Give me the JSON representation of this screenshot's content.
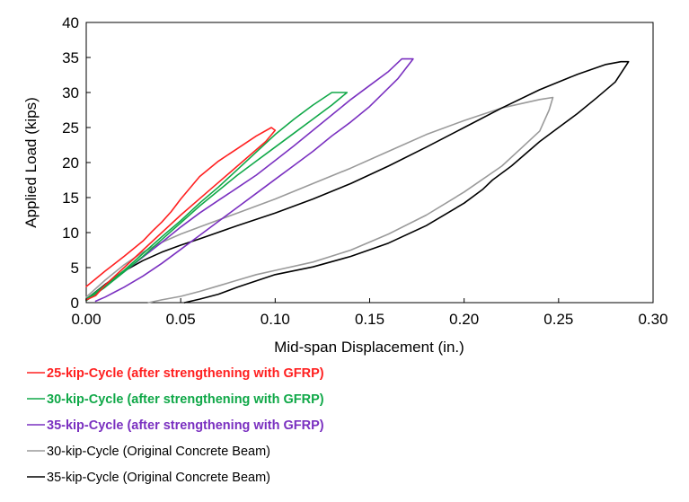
{
  "chart_data": {
    "type": "line",
    "title": "",
    "xlabel": "Mid-span Displacement (in.)",
    "ylabel": "Applied Load (kips)",
    "xlim": [
      0,
      0.3
    ],
    "ylim": [
      0,
      40
    ],
    "x_ticks": [
      "0.00",
      "0.05",
      "0.10",
      "0.15",
      "0.20",
      "0.25",
      "0.30"
    ],
    "y_ticks": [
      "0",
      "5",
      "10",
      "15",
      "20",
      "25",
      "30",
      "35",
      "40"
    ],
    "grid": false,
    "legend_position": "bottom-left",
    "series": [
      {
        "name": "25-kip-Cycle (after strengthening with GFRP)",
        "color": "#ff2020",
        "bold": true,
        "loading": [
          [
            0.0,
            2.3
          ],
          [
            0.01,
            4.5
          ],
          [
            0.02,
            6.6
          ],
          [
            0.03,
            8.8
          ],
          [
            0.035,
            10.2
          ],
          [
            0.04,
            11.5
          ],
          [
            0.045,
            13.0
          ],
          [
            0.05,
            14.8
          ],
          [
            0.055,
            16.4
          ],
          [
            0.06,
            18.0
          ],
          [
            0.07,
            20.2
          ],
          [
            0.08,
            22.0
          ],
          [
            0.09,
            23.8
          ],
          [
            0.098,
            25.0
          ]
        ],
        "unloading": [
          [
            0.098,
            25.0
          ],
          [
            0.1,
            24.6
          ],
          [
            0.095,
            23.0
          ],
          [
            0.08,
            19.5
          ],
          [
            0.065,
            16.0
          ],
          [
            0.05,
            12.5
          ],
          [
            0.04,
            10.0
          ],
          [
            0.03,
            7.5
          ],
          [
            0.02,
            5.0
          ],
          [
            0.01,
            2.5
          ],
          [
            0.005,
            1.0
          ],
          [
            0.0,
            0.4
          ]
        ]
      },
      {
        "name": "30-kip-Cycle (after strengthening with GFRP)",
        "color": "#10a848",
        "bold": true,
        "loading": [
          [
            0.0,
            0.5
          ],
          [
            0.01,
            2.5
          ],
          [
            0.02,
            4.6
          ],
          [
            0.03,
            7.0
          ],
          [
            0.04,
            9.4
          ],
          [
            0.05,
            11.7
          ],
          [
            0.06,
            14.2
          ],
          [
            0.07,
            16.5
          ],
          [
            0.08,
            19.0
          ],
          [
            0.09,
            21.5
          ],
          [
            0.1,
            24.0
          ],
          [
            0.11,
            26.2
          ],
          [
            0.12,
            28.2
          ],
          [
            0.13,
            30.0
          ],
          [
            0.138,
            30.0
          ]
        ],
        "unloading": [
          [
            0.138,
            30.0
          ],
          [
            0.13,
            28.2
          ],
          [
            0.12,
            26.2
          ],
          [
            0.11,
            24.2
          ],
          [
            0.1,
            22.2
          ],
          [
            0.09,
            20.2
          ],
          [
            0.08,
            18.2
          ],
          [
            0.07,
            16.0
          ],
          [
            0.06,
            13.8
          ],
          [
            0.05,
            11.4
          ],
          [
            0.04,
            9.0
          ],
          [
            0.03,
            6.6
          ],
          [
            0.02,
            4.4
          ],
          [
            0.01,
            2.2
          ],
          [
            0.0,
            0.3
          ]
        ]
      },
      {
        "name": "35-kip-Cycle (after strengthening with GFRP)",
        "color": "#7a30c0",
        "bold": true,
        "loading": [
          [
            0.0,
            0.3
          ],
          [
            0.01,
            2.3
          ],
          [
            0.02,
            4.4
          ],
          [
            0.03,
            6.5
          ],
          [
            0.04,
            8.6
          ],
          [
            0.05,
            10.8
          ],
          [
            0.06,
            12.8
          ],
          [
            0.07,
            14.6
          ],
          [
            0.08,
            16.4
          ],
          [
            0.09,
            18.2
          ],
          [
            0.1,
            20.3
          ],
          [
            0.11,
            22.4
          ],
          [
            0.12,
            24.6
          ],
          [
            0.13,
            26.8
          ],
          [
            0.14,
            29.0
          ],
          [
            0.15,
            31.0
          ],
          [
            0.16,
            33.0
          ],
          [
            0.167,
            34.8
          ],
          [
            0.173,
            34.8
          ]
        ],
        "unloading": [
          [
            0.173,
            34.8
          ],
          [
            0.165,
            32.0
          ],
          [
            0.15,
            28.0
          ],
          [
            0.14,
            25.8
          ],
          [
            0.13,
            23.8
          ],
          [
            0.12,
            21.6
          ],
          [
            0.11,
            19.6
          ],
          [
            0.1,
            17.6
          ],
          [
            0.09,
            15.6
          ],
          [
            0.08,
            13.6
          ],
          [
            0.07,
            11.6
          ],
          [
            0.06,
            9.6
          ],
          [
            0.05,
            7.6
          ],
          [
            0.04,
            5.6
          ],
          [
            0.03,
            3.8
          ],
          [
            0.02,
            2.2
          ],
          [
            0.01,
            0.8
          ],
          [
            0.005,
            0.2
          ]
        ]
      },
      {
        "name": "30-kip-Cycle (Original Concrete Beam)",
        "color": "#9a9a9a",
        "bold": false,
        "loading": [
          [
            0.0,
            0.8
          ],
          [
            0.01,
            3.2
          ],
          [
            0.02,
            5.4
          ],
          [
            0.03,
            7.2
          ],
          [
            0.04,
            8.6
          ],
          [
            0.05,
            9.8
          ],
          [
            0.06,
            10.8
          ],
          [
            0.08,
            12.8
          ],
          [
            0.1,
            14.8
          ],
          [
            0.12,
            17.0
          ],
          [
            0.14,
            19.2
          ],
          [
            0.16,
            21.6
          ],
          [
            0.18,
            24.0
          ],
          [
            0.2,
            26.0
          ],
          [
            0.22,
            27.8
          ],
          [
            0.24,
            29.0
          ],
          [
            0.247,
            29.3
          ]
        ],
        "unloading": [
          [
            0.247,
            29.3
          ],
          [
            0.245,
            27.5
          ],
          [
            0.24,
            24.5
          ],
          [
            0.23,
            22.0
          ],
          [
            0.22,
            19.5
          ],
          [
            0.2,
            15.8
          ],
          [
            0.18,
            12.5
          ],
          [
            0.16,
            9.8
          ],
          [
            0.14,
            7.5
          ],
          [
            0.12,
            5.8
          ],
          [
            0.1,
            4.6
          ],
          [
            0.09,
            4.0
          ],
          [
            0.08,
            3.2
          ],
          [
            0.07,
            2.4
          ],
          [
            0.06,
            1.6
          ],
          [
            0.05,
            0.9
          ],
          [
            0.04,
            0.4
          ],
          [
            0.033,
            0.0
          ]
        ]
      },
      {
        "name": "35-kip-Cycle (Original Concrete Beam)",
        "color": "#000000",
        "bold": false,
        "loading": [
          [
            0.0,
            0.5
          ],
          [
            0.01,
            2.6
          ],
          [
            0.02,
            4.5
          ],
          [
            0.03,
            6.0
          ],
          [
            0.04,
            7.2
          ],
          [
            0.05,
            8.2
          ],
          [
            0.06,
            9.1
          ],
          [
            0.08,
            11.0
          ],
          [
            0.1,
            12.8
          ],
          [
            0.12,
            14.8
          ],
          [
            0.14,
            17.0
          ],
          [
            0.16,
            19.5
          ],
          [
            0.18,
            22.2
          ],
          [
            0.2,
            25.0
          ],
          [
            0.22,
            27.8
          ],
          [
            0.24,
            30.4
          ],
          [
            0.26,
            32.6
          ],
          [
            0.275,
            34.0
          ],
          [
            0.283,
            34.4
          ],
          [
            0.287,
            34.4
          ]
        ],
        "unloading": [
          [
            0.287,
            34.4
          ],
          [
            0.28,
            31.5
          ],
          [
            0.27,
            29.2
          ],
          [
            0.26,
            27.0
          ],
          [
            0.25,
            25.0
          ],
          [
            0.24,
            23.0
          ],
          [
            0.225,
            19.5
          ],
          [
            0.215,
            17.5
          ],
          [
            0.21,
            16.2
          ],
          [
            0.2,
            14.2
          ],
          [
            0.18,
            11.0
          ],
          [
            0.16,
            8.5
          ],
          [
            0.14,
            6.6
          ],
          [
            0.12,
            5.1
          ],
          [
            0.1,
            4.0
          ],
          [
            0.09,
            3.1
          ],
          [
            0.08,
            2.2
          ],
          [
            0.07,
            1.2
          ],
          [
            0.06,
            0.5
          ],
          [
            0.052,
            0.0
          ]
        ]
      }
    ]
  }
}
